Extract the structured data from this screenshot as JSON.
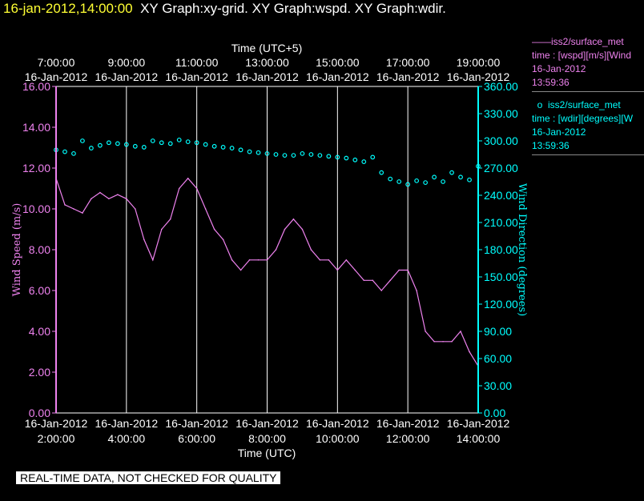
{
  "header": {
    "date_time": "16-jan-2012,14:00:00",
    "graphs": "XY Graph:xy-grid.  XY Graph:wspd.  XY Graph:wdir."
  },
  "legend": {
    "wspd": {
      "line1": "iss2/surface_met",
      "line2": "time : [wspd][m/s][Wind",
      "line3": "16-Jan-2012",
      "line4": "13:59:36"
    },
    "wdir": {
      "line1": "iss2/surface_met",
      "line2": "time : [wdir][degrees][W",
      "line3": "16-Jan-2012",
      "line4": "13:59:36"
    }
  },
  "footer": "REAL-TIME DATA, NOT CHECKED FOR QUALITY",
  "colors": {
    "wspd": "#ee82ee",
    "wdir": "#00ffff",
    "title_date": "#ffff33",
    "background": "#000000",
    "grid": "#ffffff"
  },
  "chart_data": {
    "type": "line",
    "top_axis_title": "Time (UTC+5)",
    "bottom_axis_title": "Time (UTC)",
    "ylabel_left": "Wind Speed (m/s)",
    "ylabel_right": "Wind Direction (degrees)",
    "x_range_utc_hours": [
      2,
      14
    ],
    "ylim_left": [
      0,
      16
    ],
    "ylim_right": [
      0,
      360
    ],
    "grid": "vertical lines at 2-hour intervals",
    "bottom_ticks": [
      {
        "date": "16-Jan-2012",
        "time": "2:00:00"
      },
      {
        "date": "16-Jan-2012",
        "time": "4:00:00"
      },
      {
        "date": "16-Jan-2012",
        "time": "6:00:00"
      },
      {
        "date": "16-Jan-2012",
        "time": "8:00:00"
      },
      {
        "date": "16-Jan-2012",
        "time": "10:00:00"
      },
      {
        "date": "16-Jan-2012",
        "time": "12:00:00"
      },
      {
        "date": "16-Jan-2012",
        "time": "14:00:00"
      }
    ],
    "top_ticks": [
      {
        "date": "16-Jan-2012",
        "time": "7:00:00"
      },
      {
        "date": "16-Jan-2012",
        "time": "9:00:00"
      },
      {
        "date": "16-Jan-2012",
        "time": "11:00:00"
      },
      {
        "date": "16-Jan-2012",
        "time": "13:00:00"
      },
      {
        "date": "16-Jan-2012",
        "time": "15:00:00"
      },
      {
        "date": "16-Jan-2012",
        "time": "17:00:00"
      },
      {
        "date": "16-Jan-2012",
        "time": "19:00:00"
      }
    ],
    "left_ticks": [
      "0.00",
      "2.00",
      "4.00",
      "6.00",
      "8.00",
      "10.00",
      "12.00",
      "14.00",
      "16.00"
    ],
    "right_ticks": [
      "0.00",
      "30.00",
      "60.00",
      "90.00",
      "120.00",
      "150.00",
      "180.00",
      "210.00",
      "240.00",
      "270.00",
      "300.00",
      "330.00",
      "360.00"
    ],
    "series": [
      {
        "name": "wspd",
        "axis": "left",
        "style": "line",
        "x": [
          2.0,
          2.25,
          2.5,
          2.75,
          3.0,
          3.25,
          3.5,
          3.75,
          4.0,
          4.25,
          4.5,
          4.75,
          5.0,
          5.25,
          5.5,
          5.75,
          6.0,
          6.25,
          6.5,
          6.75,
          7.0,
          7.25,
          7.5,
          7.75,
          8.0,
          8.25,
          8.5,
          8.75,
          9.0,
          9.25,
          9.5,
          9.75,
          10.0,
          10.25,
          10.5,
          10.75,
          11.0,
          11.25,
          11.5,
          11.75,
          12.0,
          12.25,
          12.5,
          12.75,
          13.0,
          13.25,
          13.5,
          13.75,
          14.0
        ],
        "y": [
          11.5,
          10.2,
          10.0,
          9.8,
          10.5,
          10.8,
          10.5,
          10.7,
          10.5,
          10.0,
          8.5,
          7.5,
          9.0,
          9.5,
          11.0,
          11.5,
          11.0,
          10.0,
          9.0,
          8.5,
          7.5,
          7.0,
          7.5,
          7.5,
          7.5,
          8.0,
          9.0,
          9.5,
          9.0,
          8.0,
          7.5,
          7.5,
          7.0,
          7.5,
          7.0,
          6.5,
          6.5,
          6.0,
          6.5,
          7.0,
          7.0,
          6.0,
          4.0,
          3.5,
          3.5,
          3.5,
          4.0,
          3.0,
          2.3
        ]
      },
      {
        "name": "wdir",
        "axis": "right",
        "style": "points",
        "x": [
          2.0,
          2.25,
          2.5,
          2.75,
          3.0,
          3.25,
          3.5,
          3.75,
          4.0,
          4.25,
          4.5,
          4.75,
          5.0,
          5.25,
          5.5,
          5.75,
          6.0,
          6.25,
          6.5,
          6.75,
          7.0,
          7.25,
          7.5,
          7.75,
          8.0,
          8.25,
          8.5,
          8.75,
          9.0,
          9.25,
          9.5,
          9.75,
          10.0,
          10.25,
          10.5,
          10.75,
          11.0,
          11.25,
          11.5,
          11.75,
          12.0,
          12.25,
          12.5,
          12.75,
          13.0,
          13.25,
          13.5,
          13.75,
          14.0
        ],
        "y": [
          290,
          288,
          286,
          300,
          292,
          295,
          298,
          297,
          296,
          294,
          293,
          300,
          298,
          297,
          301,
          299,
          298,
          296,
          294,
          293,
          292,
          290,
          288,
          287,
          286,
          285,
          284,
          284,
          286,
          285,
          284,
          283,
          282,
          281,
          279,
          277,
          282,
          265,
          258,
          255,
          252,
          256,
          254,
          260,
          255,
          265,
          260,
          257,
          272
        ]
      }
    ]
  }
}
